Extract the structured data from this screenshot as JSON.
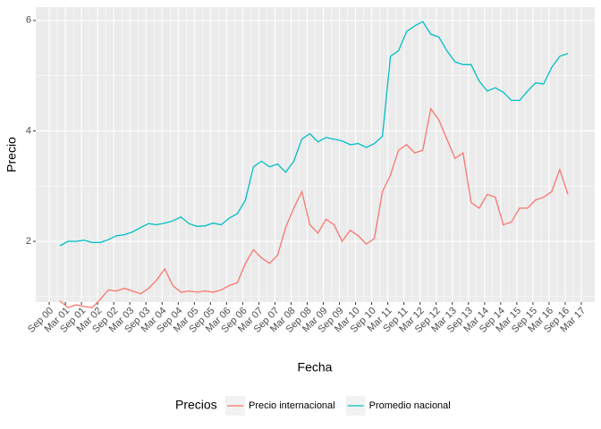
{
  "chart_data": {
    "type": "line",
    "x_label": "Fecha",
    "y_label": "Precio",
    "legend_title": "Precios",
    "legend_position": "bottom",
    "grid": true,
    "x": [
      "2001-01",
      "2001-04",
      "2001-07",
      "2001-10",
      "2002-01",
      "2002-04",
      "2002-07",
      "2002-10",
      "2003-01",
      "2003-04",
      "2003-07",
      "2003-10",
      "2004-01",
      "2004-04",
      "2004-07",
      "2004-10",
      "2005-01",
      "2005-04",
      "2005-07",
      "2005-10",
      "2006-01",
      "2006-04",
      "2006-07",
      "2006-10",
      "2007-01",
      "2007-04",
      "2007-07",
      "2007-10",
      "2008-01",
      "2008-04",
      "2008-07",
      "2008-10",
      "2009-01",
      "2009-04",
      "2009-07",
      "2009-10",
      "2010-01",
      "2010-04",
      "2010-07",
      "2010-10",
      "2011-01",
      "2011-04",
      "2011-07",
      "2011-10",
      "2012-01",
      "2012-04",
      "2012-07",
      "2012-10",
      "2013-01",
      "2013-04",
      "2013-07",
      "2013-10",
      "2014-01",
      "2014-04",
      "2014-07",
      "2014-10",
      "2015-01",
      "2015-04",
      "2015-07",
      "2015-10",
      "2016-01",
      "2016-04",
      "2016-07",
      "2016-10"
    ],
    "series": [
      {
        "name": "Precio internacional",
        "color": "#F8766D",
        "values": [
          0.92,
          0.8,
          0.85,
          0.82,
          0.8,
          0.95,
          1.12,
          1.1,
          1.15,
          1.1,
          1.05,
          1.15,
          1.3,
          1.5,
          1.2,
          1.08,
          1.1,
          1.08,
          1.1,
          1.08,
          1.12,
          1.2,
          1.25,
          1.6,
          1.85,
          1.7,
          1.6,
          1.75,
          2.25,
          2.6,
          2.9,
          2.3,
          2.15,
          2.4,
          2.3,
          2.0,
          2.2,
          2.1,
          1.95,
          2.05,
          2.9,
          3.2,
          3.65,
          3.75,
          3.6,
          3.65,
          4.4,
          4.2,
          3.85,
          3.5,
          3.6,
          2.7,
          2.6,
          2.85,
          2.8,
          2.3,
          2.35,
          2.6,
          2.6,
          2.75,
          2.8,
          2.9,
          3.3,
          2.85
        ]
      },
      {
        "name": "Promedio nacional",
        "color": "#00BFC4",
        "values": [
          1.92,
          2.0,
          2.0,
          2.02,
          1.98,
          1.98,
          2.03,
          2.1,
          2.12,
          2.17,
          2.25,
          2.32,
          2.3,
          2.33,
          2.37,
          2.44,
          2.32,
          2.27,
          2.28,
          2.33,
          2.3,
          2.42,
          2.5,
          2.75,
          3.35,
          3.45,
          3.35,
          3.4,
          3.25,
          3.45,
          3.85,
          3.95,
          3.8,
          3.88,
          3.85,
          3.82,
          3.75,
          3.77,
          3.7,
          3.77,
          3.9,
          5.35,
          5.45,
          5.8,
          5.9,
          5.98,
          5.75,
          5.7,
          5.45,
          5.25,
          5.2,
          5.2,
          4.9,
          4.72,
          4.78,
          4.7,
          4.55,
          4.55,
          4.72,
          4.87,
          4.85,
          5.15,
          5.35,
          5.4
        ]
      }
    ],
    "ylim": [
      0.9,
      6.24
    ],
    "yticks": [
      2,
      4,
      6
    ],
    "xlim": [
      "2000-04",
      "2017-08"
    ],
    "xticks": [
      {
        "value": "2000-09",
        "label": "Sep 00"
      },
      {
        "value": "2001-03",
        "label": "Mar 01"
      },
      {
        "value": "2001-09",
        "label": "Sep 01"
      },
      {
        "value": "2002-03",
        "label": "Mar 02"
      },
      {
        "value": "2002-09",
        "label": "Sep 02"
      },
      {
        "value": "2003-03",
        "label": "Mar 03"
      },
      {
        "value": "2003-09",
        "label": "Sep 03"
      },
      {
        "value": "2004-03",
        "label": "Mar 04"
      },
      {
        "value": "2004-09",
        "label": "Sep 04"
      },
      {
        "value": "2005-03",
        "label": "Mar 05"
      },
      {
        "value": "2005-09",
        "label": "Sep 05"
      },
      {
        "value": "2006-03",
        "label": "Mar 06"
      },
      {
        "value": "2006-09",
        "label": "Sep 06"
      },
      {
        "value": "2007-03",
        "label": "Mar 07"
      },
      {
        "value": "2007-09",
        "label": "Sep 07"
      },
      {
        "value": "2008-03",
        "label": "Mar 08"
      },
      {
        "value": "2008-09",
        "label": "Sep 08"
      },
      {
        "value": "2009-03",
        "label": "Mar 09"
      },
      {
        "value": "2009-09",
        "label": "Sep 09"
      },
      {
        "value": "2010-03",
        "label": "Mar 10"
      },
      {
        "value": "2010-09",
        "label": "Sep 10"
      },
      {
        "value": "2011-03",
        "label": "Mar 11"
      },
      {
        "value": "2011-09",
        "label": "Sep 11"
      },
      {
        "value": "2012-03",
        "label": "Mar 12"
      },
      {
        "value": "2012-09",
        "label": "Sep 12"
      },
      {
        "value": "2013-03",
        "label": "Mar 13"
      },
      {
        "value": "2013-09",
        "label": "Sep 13"
      },
      {
        "value": "2014-03",
        "label": "Mar 14"
      },
      {
        "value": "2014-09",
        "label": "Sep 14"
      },
      {
        "value": "2015-03",
        "label": "Mar 15"
      },
      {
        "value": "2015-09",
        "label": "Sep 15"
      },
      {
        "value": "2016-03",
        "label": "Mar 16"
      },
      {
        "value": "2016-09",
        "label": "Sep 16"
      },
      {
        "value": "2017-03",
        "label": "Mar 17"
      }
    ]
  }
}
